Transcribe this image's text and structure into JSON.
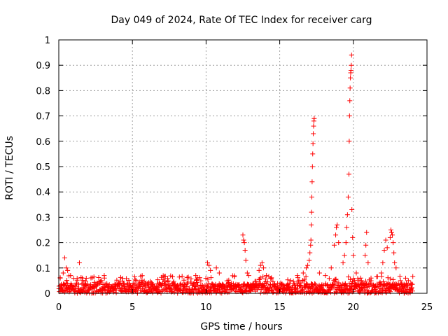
{
  "chart_data": {
    "type": "scatter",
    "title": "Day 049 of 2024, Rate Of TEC Index for receiver carg",
    "xlabel": "GPS time / hours",
    "ylabel": "ROTI / TECUs",
    "xlim": [
      0,
      25
    ],
    "ylim": [
      0,
      1
    ],
    "x_ticks": [
      0,
      5,
      10,
      15,
      20,
      25
    ],
    "y_ticks": [
      0,
      0.1,
      0.2,
      0.3,
      0.4,
      0.5,
      0.6,
      0.7,
      0.8,
      0.9,
      1
    ],
    "x_tick_labels": [
      "0",
      "5",
      "10",
      "15",
      "20",
      "25"
    ],
    "y_tick_labels": [
      "0",
      "0.1",
      "0.2",
      "0.3",
      "0.4",
      "0.5",
      "0.6",
      "0.7",
      "0.8",
      "0.9",
      "1"
    ],
    "grid": true,
    "marker": "+",
    "marker_color": "#ff0000",
    "data_range_hours": [
      0,
      24
    ],
    "background_roti_typical": 0.03,
    "background_roti_max": 0.07,
    "series": [
      {
        "name": "ROTI",
        "points": [
          [
            0.1,
            0.06
          ],
          [
            0.3,
            0.08
          ],
          [
            0.4,
            0.14
          ],
          [
            0.5,
            0.1
          ],
          [
            0.6,
            0.09
          ],
          [
            0.8,
            0.07
          ],
          [
            1.4,
            0.12
          ],
          [
            1.6,
            0.06
          ],
          [
            2.9,
            0.05
          ],
          [
            3.1,
            0.06
          ],
          [
            7.2,
            0.05
          ],
          [
            9.3,
            0.07
          ],
          [
            9.4,
            0.06
          ],
          [
            10.1,
            0.12
          ],
          [
            10.2,
            0.11
          ],
          [
            10.3,
            0.09
          ],
          [
            10.7,
            0.1
          ],
          [
            10.9,
            0.08
          ],
          [
            12.5,
            0.23
          ],
          [
            12.55,
            0.21
          ],
          [
            12.6,
            0.2
          ],
          [
            12.65,
            0.17
          ],
          [
            12.7,
            0.13
          ],
          [
            12.8,
            0.08
          ],
          [
            12.9,
            0.07
          ],
          [
            13.6,
            0.09
          ],
          [
            13.7,
            0.11
          ],
          [
            13.8,
            0.12
          ],
          [
            13.9,
            0.1
          ],
          [
            14.1,
            0.07
          ],
          [
            16.2,
            0.07
          ],
          [
            16.6,
            0.08
          ],
          [
            16.8,
            0.1
          ],
          [
            16.9,
            0.11
          ],
          [
            17.0,
            0.13
          ],
          [
            17.05,
            0.16
          ],
          [
            17.1,
            0.19
          ],
          [
            17.12,
            0.21
          ],
          [
            17.14,
            0.27
          ],
          [
            17.16,
            0.32
          ],
          [
            17.18,
            0.38
          ],
          [
            17.2,
            0.44
          ],
          [
            17.22,
            0.5
          ],
          [
            17.24,
            0.55
          ],
          [
            17.26,
            0.59
          ],
          [
            17.28,
            0.63
          ],
          [
            17.3,
            0.66
          ],
          [
            17.32,
            0.68
          ],
          [
            17.34,
            0.69
          ],
          [
            17.7,
            0.08
          ],
          [
            18.1,
            0.07
          ],
          [
            18.5,
            0.1
          ],
          [
            18.7,
            0.19
          ],
          [
            18.8,
            0.23
          ],
          [
            18.85,
            0.26
          ],
          [
            18.9,
            0.27
          ],
          [
            19.0,
            0.2
          ],
          [
            19.3,
            0.12
          ],
          [
            19.4,
            0.15
          ],
          [
            19.5,
            0.2
          ],
          [
            19.55,
            0.26
          ],
          [
            19.6,
            0.31
          ],
          [
            19.65,
            0.38
          ],
          [
            19.7,
            0.47
          ],
          [
            19.72,
            0.6
          ],
          [
            19.74,
            0.7
          ],
          [
            19.76,
            0.76
          ],
          [
            19.78,
            0.81
          ],
          [
            19.8,
            0.85
          ],
          [
            19.82,
            0.87
          ],
          [
            19.84,
            0.88
          ],
          [
            19.86,
            0.9
          ],
          [
            19.88,
            0.94
          ],
          [
            19.9,
            0.33
          ],
          [
            19.95,
            0.22
          ],
          [
            20.0,
            0.15
          ],
          [
            20.2,
            0.08
          ],
          [
            20.5,
            0.06
          ],
          [
            20.8,
            0.15
          ],
          [
            20.85,
            0.19
          ],
          [
            20.9,
            0.24
          ],
          [
            21.0,
            0.12
          ],
          [
            21.2,
            0.06
          ],
          [
            21.9,
            0.08
          ],
          [
            22.0,
            0.12
          ],
          [
            22.1,
            0.17
          ],
          [
            22.2,
            0.21
          ],
          [
            22.3,
            0.18
          ],
          [
            22.5,
            0.22
          ],
          [
            22.55,
            0.25
          ],
          [
            22.6,
            0.24
          ],
          [
            22.65,
            0.23
          ],
          [
            22.7,
            0.2
          ],
          [
            22.75,
            0.16
          ],
          [
            22.8,
            0.12
          ],
          [
            22.9,
            0.1
          ],
          [
            23.2,
            0.05
          ],
          [
            23.6,
            0.04
          ],
          [
            23.9,
            0.04
          ]
        ]
      }
    ]
  }
}
